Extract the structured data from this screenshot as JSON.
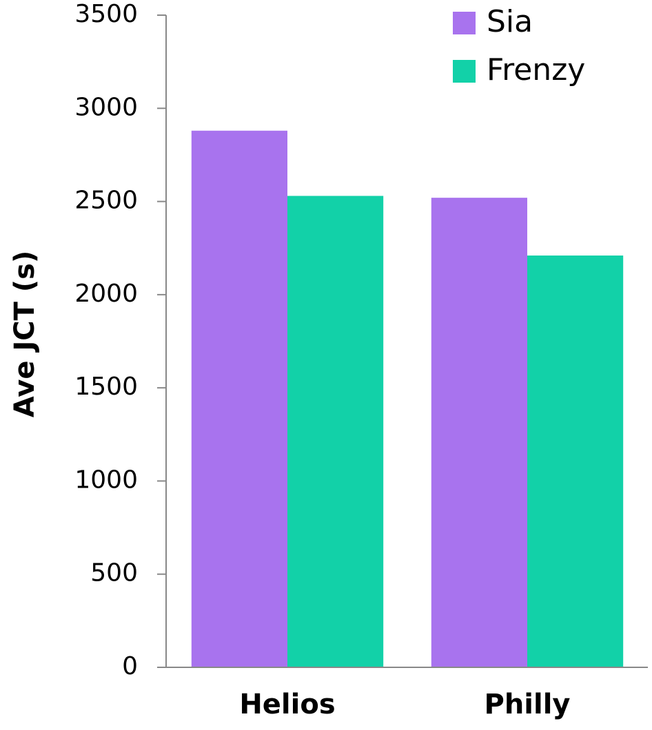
{
  "chart_data": {
    "type": "bar",
    "y_label": "Ave JCT (s)",
    "categories": [
      "Helios",
      "Philly"
    ],
    "series": [
      {
        "name": "Sia",
        "color": "#a873ee",
        "values": [
          2880,
          2520
        ]
      },
      {
        "name": "Frenzy",
        "color": "#12d1a8",
        "values": [
          2530,
          2210
        ]
      }
    ],
    "ylim": [
      0,
      3500
    ],
    "yticks": [
      0,
      500,
      1000,
      1500,
      2000,
      2500,
      3000,
      3500
    ],
    "grid": false,
    "legend": "top-right"
  }
}
